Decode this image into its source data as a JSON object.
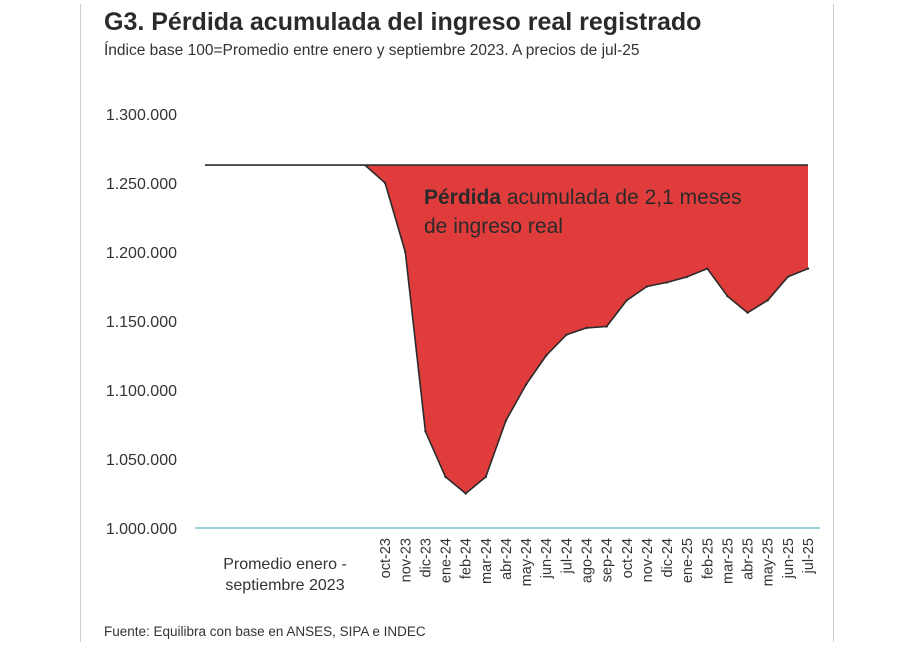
{
  "title": "G3. Pérdida acumulada del ingreso real registrado",
  "subtitle": "Índice base 100=Promedio entre enero y septiembre 2023. A precios de jul-25",
  "source": "Fuente: Equilibra con base en ANSES, SIPA e INDEC",
  "annotation": {
    "bold": "Pérdida",
    "rest_line1": " acumulada de 2,1 meses",
    "line2": "de ingreso real"
  },
  "colors": {
    "loss_fill": "#e03c3c",
    "line": "#2b2b2b",
    "axis_line": "#5fb8c6"
  },
  "chart_data": {
    "type": "area",
    "title": "G3. Pérdida acumulada del ingreso real registrado",
    "xlabel": "",
    "ylabel": "",
    "ylim": [
      1000000,
      1300000
    ],
    "y_ticks": [
      "1.000.000",
      "1.050.000",
      "1.100.000",
      "1.150.000",
      "1.200.000",
      "1.250.000",
      "1.300.000"
    ],
    "y_tick_values": [
      1000000,
      1050000,
      1100000,
      1150000,
      1200000,
      1250000,
      1300000
    ],
    "baseline_value": 1263000,
    "baseline_label_line1": "Promedio enero -",
    "baseline_label_line2": "septiembre 2023",
    "categories": [
      "oct-23",
      "nov-23",
      "dic-23",
      "ene-24",
      "feb-24",
      "mar-24",
      "abr-24",
      "may-24",
      "jun-24",
      "jul-24",
      "ago-24",
      "sep-24",
      "oct-24",
      "nov-24",
      "dic-24",
      "ene-25",
      "feb-25",
      "mar-25",
      "abr-25",
      "may-25",
      "jun-25",
      "jul-25"
    ],
    "values": [
      1250000,
      1200000,
      1070000,
      1037000,
      1025000,
      1037000,
      1078000,
      1104000,
      1125000,
      1140000,
      1145000,
      1146000,
      1165000,
      1175000,
      1178000,
      1182000,
      1188000,
      1168000,
      1156000,
      1165000,
      1182000,
      1188000
    ],
    "series_name": "Ingreso real registrado"
  }
}
